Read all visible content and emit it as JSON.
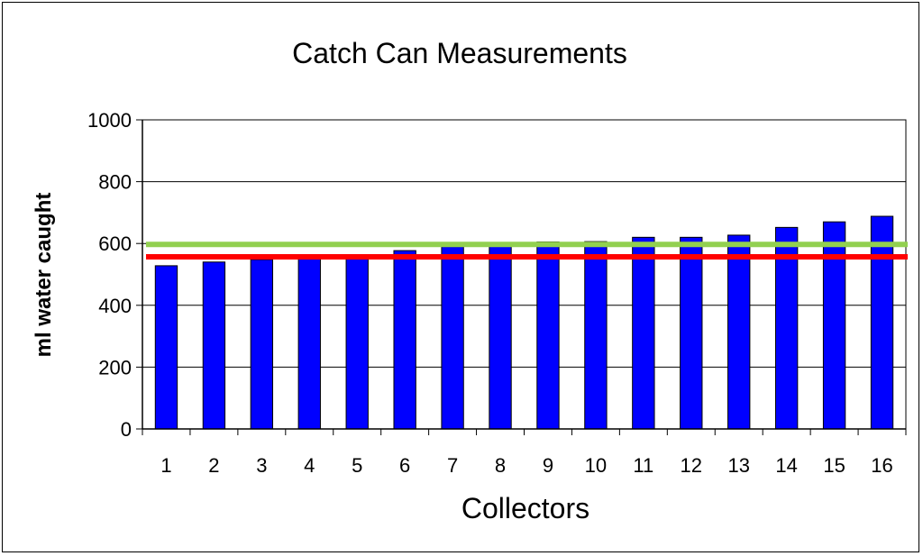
{
  "chart_data": {
    "type": "bar",
    "title": "Catch Can Measurements",
    "xlabel": "Collectors",
    "ylabel": "ml water caught",
    "categories": [
      "1",
      "2",
      "3",
      "4",
      "5",
      "6",
      "7",
      "8",
      "9",
      "10",
      "11",
      "12",
      "13",
      "14",
      "15",
      "16"
    ],
    "series": [
      {
        "values": [
          528,
          540,
          548,
          555,
          562,
          577,
          590,
          592,
          605,
          606,
          620,
          620,
          627,
          652,
          670,
          688
        ],
        "color": "#0000FF"
      }
    ],
    "reference_lines": [
      {
        "value": 597,
        "color": "#92D050"
      },
      {
        "value": 557,
        "color": "#FF0000"
      }
    ],
    "ylim": [
      0,
      1000
    ],
    "yticks": [
      0,
      200,
      400,
      600,
      800,
      1000
    ],
    "grid": true,
    "legend": "none"
  }
}
